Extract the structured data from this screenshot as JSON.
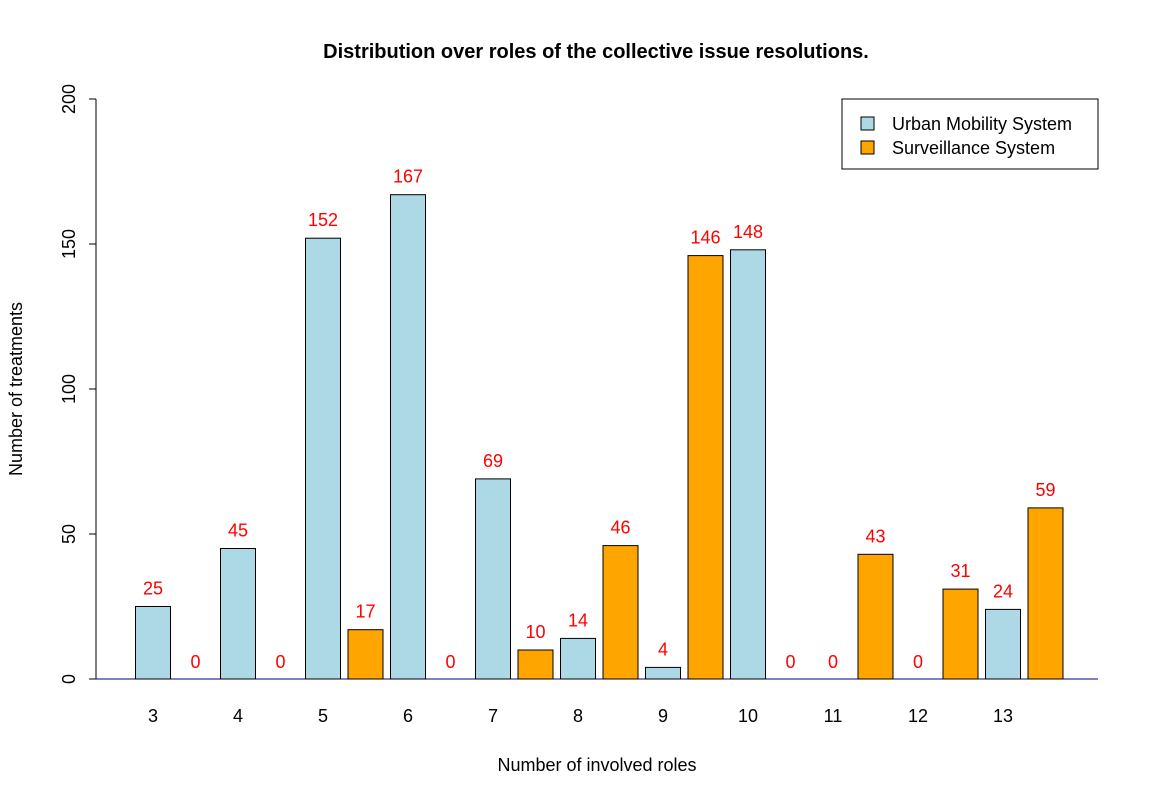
{
  "chart_data": {
    "type": "bar",
    "title": "Distribution over roles of the collective issue resolutions.",
    "xlabel": "Number of involved roles",
    "ylabel": "Number of treatments",
    "categories": [
      "3",
      "4",
      "5",
      "6",
      "7",
      "8",
      "9",
      "10",
      "11",
      "12",
      "13"
    ],
    "series": [
      {
        "name": "Urban Mobility System",
        "color": "#add8e6",
        "values": [
          25,
          45,
          152,
          167,
          69,
          14,
          4,
          148,
          0,
          0,
          24
        ]
      },
      {
        "name": "Surveillance System",
        "color": "#ffa500",
        "values": [
          0,
          0,
          17,
          0,
          10,
          46,
          146,
          0,
          43,
          31,
          59
        ]
      }
    ],
    "ylim": [
      0,
      200
    ],
    "yticks": [
      0,
      50,
      100,
      150,
      200
    ],
    "legend_position": "top-right",
    "data_label_color": "#ff0000",
    "grid": false
  }
}
